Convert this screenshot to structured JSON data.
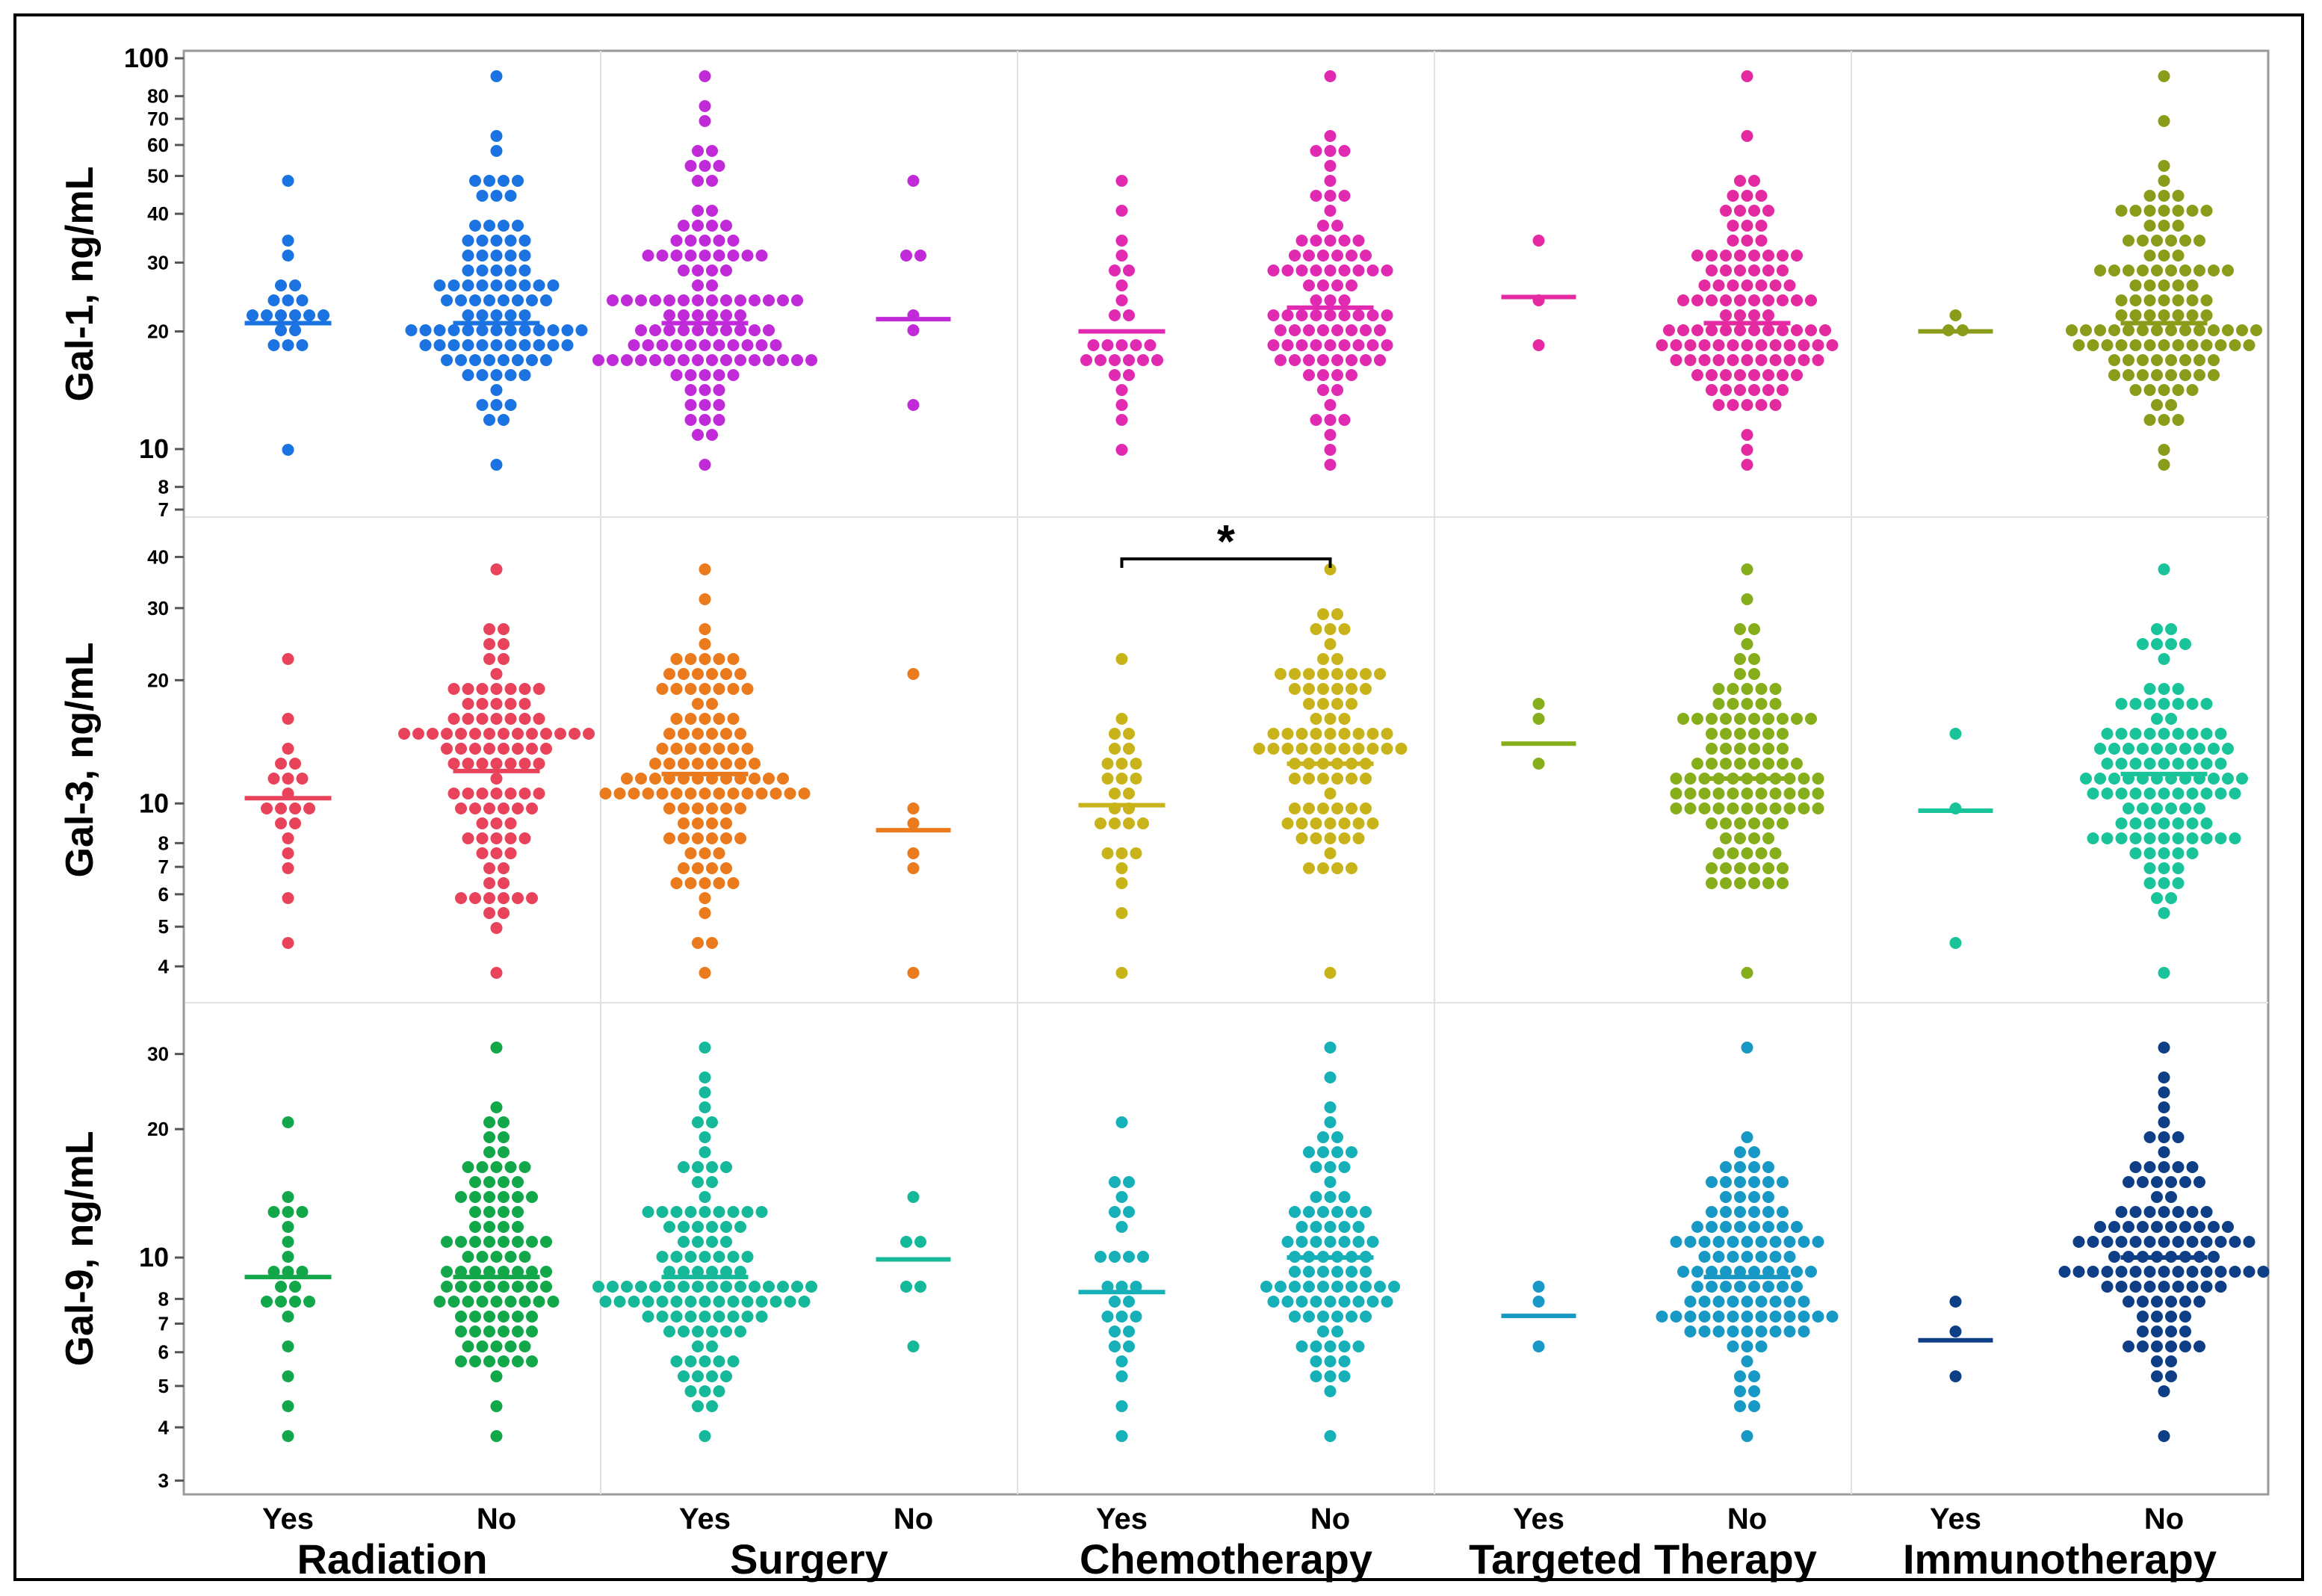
{
  "chart_data": {
    "type": "beeswarm",
    "categories": [
      "Yes",
      "No"
    ],
    "groups": [
      "Radiation",
      "Surgery",
      "Chemotherapy",
      "Targeted Therapy",
      "Immunotherapy"
    ],
    "colors": {
      "Gal-1": [
        "#1a73e0",
        "#1a73e0",
        "#c02ad8",
        "#c02ad8",
        "#e02ab2",
        "#e02ab2",
        "#e42aa0",
        "#e42aa0",
        "#8a9c1a",
        "#8a9c1a"
      ],
      "Gal-3": [
        "#e8435a",
        "#e8435a",
        "#ea7a1c",
        "#ea7a1c",
        "#c8b41a",
        "#c8b41a",
        "#86ae1a",
        "#86ae1a",
        "#1ac49a",
        "#1ac49a"
      ],
      "Gal-9": [
        "#12a84a",
        "#12a84a",
        "#16b89a",
        "#16b89a",
        "#16b0b8",
        "#16b0b8",
        "#1898c4",
        "#1898c4",
        "#0e3e86",
        "#0e3e86"
      ]
    },
    "panels": [
      {
        "name": "Gal-1",
        "ylabel": "Gal-1, ng/mL",
        "yscale": "log",
        "ylim": [
          7,
          100
        ],
        "ticks": [
          7,
          8,
          10,
          20,
          30,
          40,
          50,
          60,
          70,
          80,
          100
        ],
        "tick_labels": [
          "7",
          "8",
          "10",
          "20",
          "30",
          "40",
          "50",
          "60",
          "70",
          "80",
          "100"
        ],
        "series": [
          {
            "group": "Radiation",
            "cat": "Yes",
            "n": 20,
            "median": 21,
            "min": 10,
            "max": 49
          },
          {
            "group": "Radiation",
            "cat": "No",
            "n": 95,
            "median": 21,
            "min": 9.2,
            "max": 88
          },
          {
            "group": "Surgery",
            "cat": "Yes",
            "n": 110,
            "median": 21,
            "min": 9.2,
            "max": 88
          },
          {
            "group": "Surgery",
            "cat": "No",
            "n": 6,
            "median": 21.5,
            "min": 13,
            "max": 47
          },
          {
            "group": "Chemotherapy",
            "cat": "Yes",
            "n": 27,
            "median": 20,
            "min": 10,
            "max": 49
          },
          {
            "group": "Chemotherapy",
            "cat": "No",
            "n": 87,
            "median": 23,
            "min": 9.2,
            "max": 88
          },
          {
            "group": "Targeted Therapy",
            "cat": "Yes",
            "n": 3,
            "median": 24.5,
            "min": 19,
            "max": 33
          },
          {
            "group": "Targeted Therapy",
            "cat": "No",
            "n": 110,
            "median": 21,
            "min": 9.2,
            "max": 88
          },
          {
            "group": "Immunotherapy",
            "cat": "Yes",
            "n": 3,
            "median": 20,
            "min": 19.5,
            "max": 22
          },
          {
            "group": "Immunotherapy",
            "cat": "No",
            "n": 110,
            "median": 21,
            "min": 9.2,
            "max": 88
          }
        ]
      },
      {
        "name": "Gal-3",
        "ylabel": "Gal-3, ng/mL",
        "yscale": "log",
        "ylim": [
          3.4,
          48
        ],
        "ticks": [
          4,
          5,
          6,
          7,
          8,
          10,
          20,
          30,
          40
        ],
        "tick_labels": [
          "4",
          "5",
          "6",
          "7",
          "8",
          "10",
          "20",
          "30",
          "40"
        ],
        "significance": {
          "label": "*",
          "from": "Chemotherapy-Yes",
          "to": "Chemotherapy-No"
        },
        "series": [
          {
            "group": "Radiation",
            "cat": "Yes",
            "n": 20,
            "median": 10.3,
            "min": 4.7,
            "max": 22.5
          },
          {
            "group": "Radiation",
            "cat": "No",
            "n": 95,
            "median": 12,
            "min": 3.8,
            "max": 37
          },
          {
            "group": "Surgery",
            "cat": "Yes",
            "n": 110,
            "median": 11.8,
            "min": 3.8,
            "max": 37
          },
          {
            "group": "Surgery",
            "cat": "No",
            "n": 6,
            "median": 8.6,
            "min": 3.7,
            "max": 20
          },
          {
            "group": "Chemotherapy",
            "cat": "Yes",
            "n": 27,
            "median": 9.9,
            "min": 3.7,
            "max": 22.5
          },
          {
            "group": "Chemotherapy",
            "cat": "No",
            "n": 87,
            "median": 12.5,
            "min": 3.8,
            "max": 37
          },
          {
            "group": "Targeted Therapy",
            "cat": "Yes",
            "n": 3,
            "median": 14,
            "min": 12.7,
            "max": 17.2
          },
          {
            "group": "Targeted Therapy",
            "cat": "No",
            "n": 110,
            "median": 11.5,
            "min": 3.8,
            "max": 37
          },
          {
            "group": "Immunotherapy",
            "cat": "Yes",
            "n": 3,
            "median": 9.6,
            "min": 4.7,
            "max": 14.5
          },
          {
            "group": "Immunotherapy",
            "cat": "No",
            "n": 110,
            "median": 11.8,
            "min": 3.8,
            "max": 37
          }
        ]
      },
      {
        "name": "Gal-9",
        "ylabel": "Gal-9, ng/mL",
        "yscale": "log",
        "ylim": [
          2.9,
          38
        ],
        "ticks": [
          3,
          4,
          5,
          6,
          7,
          8,
          10,
          20,
          30
        ],
        "tick_labels": [
          "3",
          "4",
          "5",
          "6",
          "7",
          "8",
          "10",
          "20",
          "30"
        ],
        "series": [
          {
            "group": "Radiation",
            "cat": "Yes",
            "n": 22,
            "median": 9,
            "min": 3.8,
            "max": 20
          },
          {
            "group": "Radiation",
            "cat": "No",
            "n": 95,
            "median": 9,
            "min": 3.8,
            "max": 31
          },
          {
            "group": "Surgery",
            "cat": "Yes",
            "n": 110,
            "median": 9,
            "min": 3.8,
            "max": 31
          },
          {
            "group": "Surgery",
            "cat": "No",
            "n": 6,
            "median": 9.9,
            "min": 6.2,
            "max": 14
          },
          {
            "group": "Chemotherapy",
            "cat": "Yes",
            "n": 27,
            "median": 8.3,
            "min": 3.8,
            "max": 20
          },
          {
            "group": "Chemotherapy",
            "cat": "No",
            "n": 87,
            "median": 10,
            "min": 3.8,
            "max": 31
          },
          {
            "group": "Targeted Therapy",
            "cat": "Yes",
            "n": 3,
            "median": 7.3,
            "min": 6.2,
            "max": 8.6
          },
          {
            "group": "Targeted Therapy",
            "cat": "No",
            "n": 110,
            "median": 9,
            "min": 3.8,
            "max": 31
          },
          {
            "group": "Immunotherapy",
            "cat": "Yes",
            "n": 3,
            "median": 6.4,
            "min": 5.3,
            "max": 8
          },
          {
            "group": "Immunotherapy",
            "cat": "No",
            "n": 110,
            "median": 10,
            "min": 3.8,
            "max": 31
          }
        ]
      }
    ]
  }
}
